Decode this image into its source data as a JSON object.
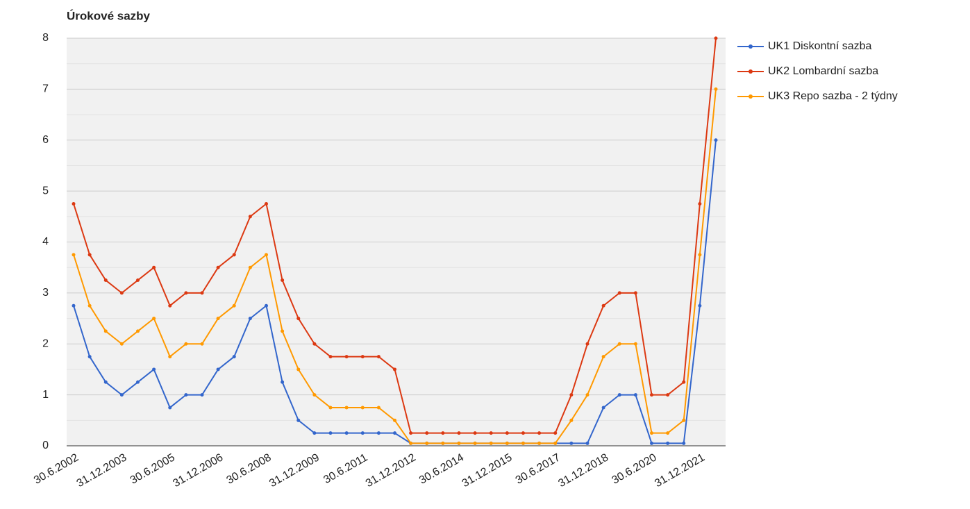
{
  "chart_data": {
    "type": "line",
    "title": "Úrokové sazby",
    "categories": [
      "30.6.2002",
      null,
      null,
      "31.12.2003",
      null,
      null,
      "30.6.2005",
      null,
      null,
      "31.12.2006",
      null,
      null,
      "30.6.2008",
      null,
      null,
      "31.12.2009",
      null,
      null,
      "30.6.2011",
      null,
      null,
      "31.12.2012",
      null,
      null,
      "30.6.2014",
      null,
      null,
      "31.12.2015",
      null,
      null,
      "30.6.2017",
      null,
      null,
      "31.12.2018",
      null,
      null,
      "30.6.2020",
      null,
      null,
      "31.12.2021",
      null
    ],
    "series": [
      {
        "name": "UK1 Diskontní sazba",
        "color": "#3366cc",
        "values": [
          2.75,
          1.75,
          1.25,
          1.0,
          1.25,
          1.5,
          0.75,
          1.0,
          1.0,
          1.5,
          1.75,
          2.5,
          2.75,
          1.25,
          0.5,
          0.25,
          0.25,
          0.25,
          0.25,
          0.25,
          0.25,
          0.05,
          0.05,
          0.05,
          0.05,
          0.05,
          0.05,
          0.05,
          0.05,
          0.05,
          0.05,
          0.05,
          0.05,
          0.75,
          1.0,
          1.0,
          0.05,
          0.05,
          0.05,
          2.75,
          6.0
        ]
      },
      {
        "name": "UK2 Lombardní sazba",
        "color": "#dc3912",
        "values": [
          4.75,
          3.75,
          3.25,
          3.0,
          3.25,
          3.5,
          2.75,
          3.0,
          3.0,
          3.5,
          3.75,
          4.5,
          4.75,
          3.25,
          2.5,
          2.0,
          1.75,
          1.75,
          1.75,
          1.75,
          1.5,
          0.25,
          0.25,
          0.25,
          0.25,
          0.25,
          0.25,
          0.25,
          0.25,
          0.25,
          0.25,
          1.0,
          2.0,
          2.75,
          3.0,
          3.0,
          1.0,
          1.0,
          1.25,
          4.75,
          8.0
        ]
      },
      {
        "name": "UK3 Repo sazba - 2 týdny",
        "color": "#ff9900",
        "values": [
          3.75,
          2.75,
          2.25,
          2.0,
          2.25,
          2.5,
          1.75,
          2.0,
          2.0,
          2.5,
          2.75,
          3.5,
          3.75,
          2.25,
          1.5,
          1.0,
          0.75,
          0.75,
          0.75,
          0.75,
          0.5,
          0.05,
          0.05,
          0.05,
          0.05,
          0.05,
          0.05,
          0.05,
          0.05,
          0.05,
          0.05,
          0.5,
          1.0,
          1.75,
          2.0,
          2.0,
          0.25,
          0.25,
          0.5,
          3.75,
          7.0
        ]
      }
    ],
    "ylim": [
      0,
      8
    ],
    "yticks": [
      0,
      1,
      2,
      3,
      4,
      5,
      6,
      7,
      8
    ],
    "grid": true,
    "legend": "right"
  }
}
